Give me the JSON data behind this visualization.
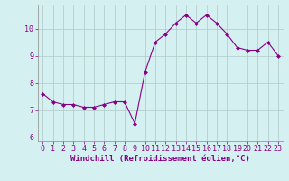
{
  "x": [
    0,
    1,
    2,
    3,
    4,
    5,
    6,
    7,
    8,
    9,
    10,
    11,
    12,
    13,
    14,
    15,
    16,
    17,
    18,
    19,
    20,
    21,
    22,
    23
  ],
  "y": [
    7.6,
    7.3,
    7.2,
    7.2,
    7.1,
    7.1,
    7.2,
    7.3,
    7.3,
    6.5,
    8.4,
    9.5,
    9.8,
    10.2,
    10.5,
    10.2,
    10.5,
    10.2,
    9.8,
    9.3,
    9.2,
    9.2,
    9.5,
    9.0
  ],
  "line_color": "#880088",
  "marker": "D",
  "markersize": 2.0,
  "linewidth": 0.8,
  "xlabel": "Windchill (Refroidissement éolien,°C)",
  "xlim": [
    -0.5,
    23.5
  ],
  "ylim": [
    5.85,
    10.85
  ],
  "yticks": [
    6,
    7,
    8,
    9,
    10
  ],
  "xticks": [
    0,
    1,
    2,
    3,
    4,
    5,
    6,
    7,
    8,
    9,
    10,
    11,
    12,
    13,
    14,
    15,
    16,
    17,
    18,
    19,
    20,
    21,
    22,
    23
  ],
  "bg_color": "#d4f0f0",
  "grid_color": "#b0c8c8",
  "tick_label_color": "#880088",
  "xlabel_fontsize": 6.5,
  "tick_fontsize": 6.0
}
